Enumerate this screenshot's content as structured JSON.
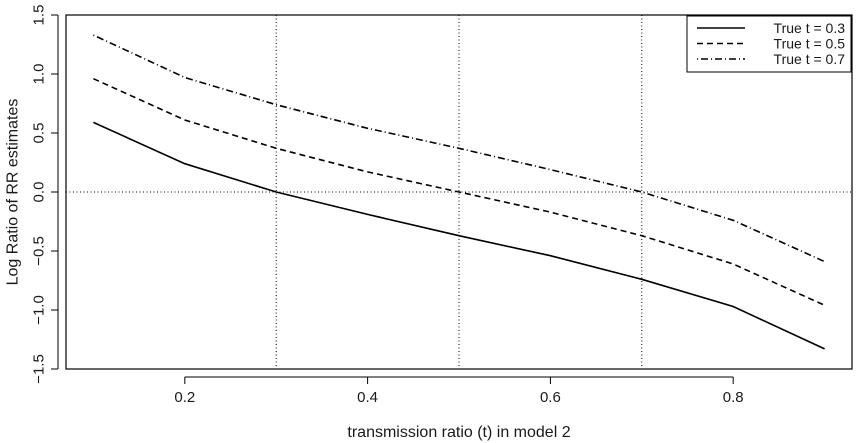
{
  "chart_data": {
    "type": "line",
    "title": "",
    "xlabel": "transmission ratio (t) in model 2",
    "ylabel": "Log Ratio of RR estimates",
    "xlim": [
      0.07,
      0.93
    ],
    "ylim": [
      -1.5,
      1.5
    ],
    "x_ticks": [
      0.2,
      0.4,
      0.6,
      0.8
    ],
    "x_tick_labels": [
      "0.2",
      "0.4",
      "0.6",
      "0.8"
    ],
    "y_ticks": [
      -1.5,
      -1.0,
      -0.5,
      0.0,
      0.5,
      1.0,
      1.5
    ],
    "y_tick_labels": [
      "−1.5",
      "−1.0",
      "−0.5",
      "0.0",
      "0.5",
      "1.0",
      "1.5"
    ],
    "reference_lines": {
      "vertical": [
        0.3,
        0.5,
        0.7
      ],
      "horizontal": [
        0.0
      ]
    },
    "legend_position": "top-right",
    "x": [
      0.1,
      0.2,
      0.3,
      0.4,
      0.5,
      0.6,
      0.7,
      0.8,
      0.9
    ],
    "series": [
      {
        "name": "True t = 0.3",
        "line_style": "solid",
        "values": [
          0.59,
          0.24,
          0.0,
          -0.19,
          -0.37,
          -0.54,
          -0.74,
          -0.97,
          -1.33
        ]
      },
      {
        "name": "True t = 0.5",
        "line_style": "dashed",
        "values": [
          0.96,
          0.61,
          0.37,
          0.17,
          0.0,
          -0.17,
          -0.37,
          -0.61,
          -0.96
        ]
      },
      {
        "name": "True t = 0.7",
        "line_style": "dotdash",
        "values": [
          1.33,
          0.97,
          0.74,
          0.54,
          0.37,
          0.19,
          0.0,
          -0.24,
          -0.59
        ]
      }
    ]
  }
}
